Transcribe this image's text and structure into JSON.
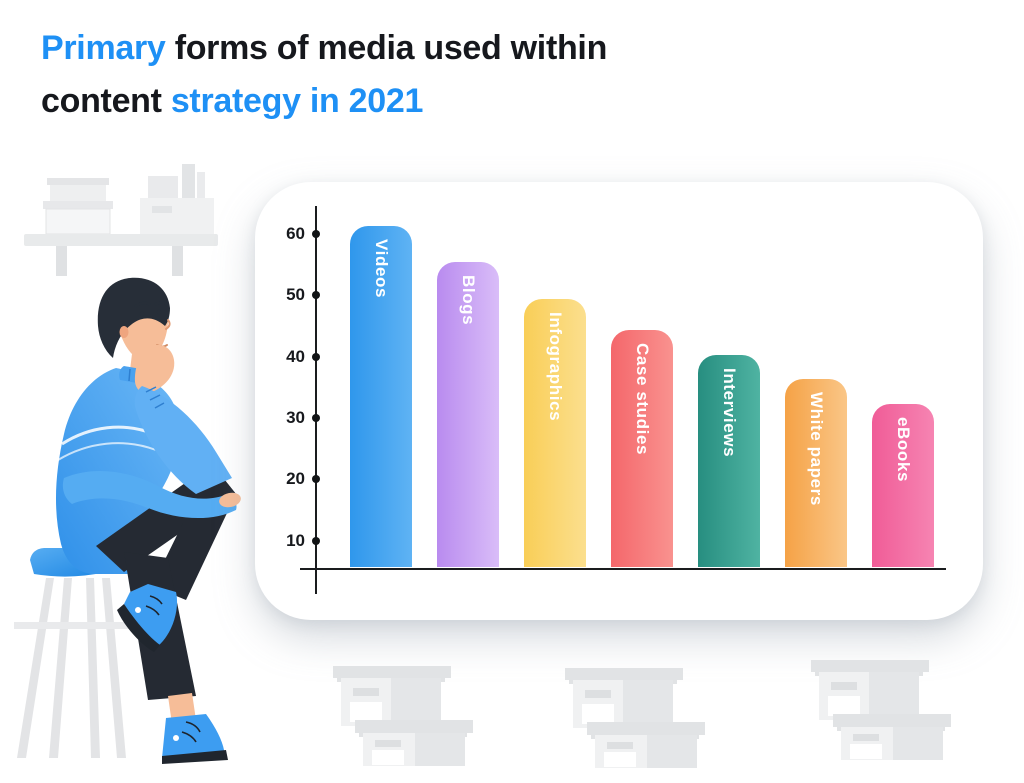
{
  "palette": {
    "accent_blue": "#1e90f5",
    "text_dark": "#16181d",
    "axis_color": "#1a1c1e",
    "card_background": "#ffffff"
  },
  "title": {
    "line1_accent": "Primary",
    "line1_rest": " forms of media used within",
    "line2_dark": "content ",
    "line2_accent": "strategy in 2021"
  },
  "chart_data": {
    "type": "bar",
    "title": "Primary forms of media used within content strategy in 2021",
    "categories": [
      "Videos",
      "Blogs",
      "Infographics",
      "Case studies",
      "Interviews",
      "White papers",
      "eBooks"
    ],
    "values": [
      61,
      55,
      49,
      44,
      40,
      36,
      32
    ],
    "yticks": [
      10,
      20,
      30,
      40,
      50,
      60
    ],
    "ylim": [
      0,
      65
    ],
    "xlabel": "",
    "ylabel": "",
    "grid": false,
    "legend": false,
    "bar_label_position": "inside-top-vertical",
    "bar_label_color": "#ffffff",
    "bar_styles": [
      {
        "from": "#2f97ec",
        "to": "#5fb3f4"
      },
      {
        "from": "#b98bef",
        "to": "#d9bdf8"
      },
      {
        "from": "#f9ce57",
        "to": "#fbdf8e"
      },
      {
        "from": "#f4676b",
        "to": "#f9928f"
      },
      {
        "from": "#278e80",
        "to": "#4fb3a2"
      },
      {
        "from": "#f5a246",
        "to": "#fac687"
      },
      {
        "from": "#f05c97",
        "to": "#f684b2"
      }
    ]
  }
}
